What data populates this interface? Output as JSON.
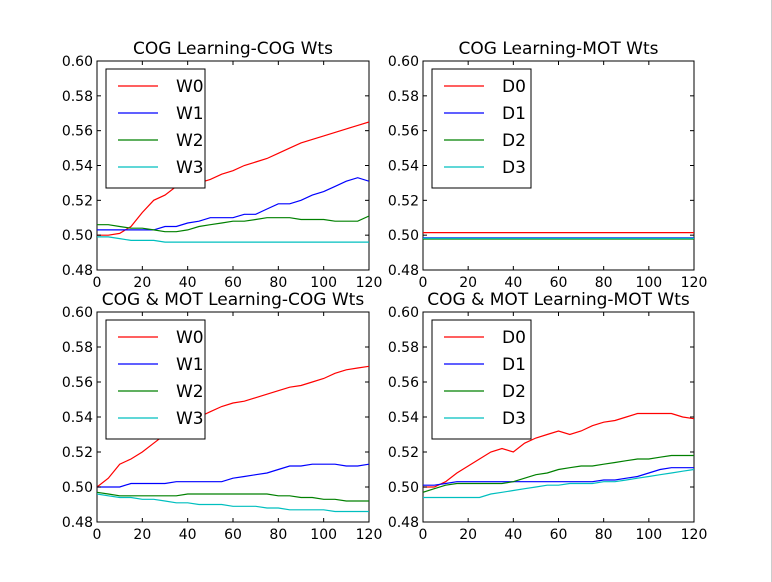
{
  "colors": {
    "red": "#ff0000",
    "blue": "#0000ff",
    "green": "#008000",
    "cyan": "#00bfbf"
  },
  "chart_data": [
    {
      "type": "line",
      "title": "COG Learning-COG Wts",
      "xlabel": "",
      "ylabel": "",
      "xlim": [
        0,
        120
      ],
      "ylim": [
        0.48,
        0.6
      ],
      "xticks": [
        "0",
        "20",
        "40",
        "60",
        "80",
        "100",
        "120"
      ],
      "yticks": [
        "0.48",
        "0.50",
        "0.52",
        "0.54",
        "0.56",
        "0.58",
        "0.60"
      ],
      "legend": "upper-left",
      "series": [
        {
          "name": "W0",
          "color": "#ff0000",
          "x": [
            0,
            5,
            10,
            15,
            20,
            25,
            30,
            35,
            40,
            45,
            50,
            55,
            60,
            65,
            70,
            75,
            80,
            85,
            90,
            95,
            100,
            105,
            110,
            115,
            120
          ],
          "y": [
            0.5,
            0.5,
            0.501,
            0.505,
            0.513,
            0.52,
            0.523,
            0.528,
            0.53,
            0.53,
            0.532,
            0.535,
            0.537,
            0.54,
            0.542,
            0.544,
            0.547,
            0.55,
            0.553,
            0.555,
            0.557,
            0.559,
            0.561,
            0.563,
            0.565
          ]
        },
        {
          "name": "W1",
          "color": "#0000ff",
          "x": [
            0,
            5,
            10,
            15,
            20,
            25,
            30,
            35,
            40,
            45,
            50,
            55,
            60,
            65,
            70,
            75,
            80,
            85,
            90,
            95,
            100,
            105,
            110,
            115,
            120
          ],
          "y": [
            0.503,
            0.503,
            0.503,
            0.503,
            0.503,
            0.503,
            0.505,
            0.505,
            0.507,
            0.508,
            0.51,
            0.51,
            0.51,
            0.512,
            0.512,
            0.515,
            0.518,
            0.518,
            0.52,
            0.523,
            0.525,
            0.528,
            0.531,
            0.533,
            0.531
          ]
        },
        {
          "name": "W2",
          "color": "#008000",
          "x": [
            0,
            5,
            10,
            15,
            20,
            25,
            30,
            35,
            40,
            45,
            50,
            55,
            60,
            65,
            70,
            75,
            80,
            85,
            90,
            95,
            100,
            105,
            110,
            115,
            120
          ],
          "y": [
            0.506,
            0.506,
            0.505,
            0.504,
            0.504,
            0.503,
            0.502,
            0.502,
            0.503,
            0.505,
            0.506,
            0.507,
            0.508,
            0.508,
            0.509,
            0.51,
            0.51,
            0.51,
            0.509,
            0.509,
            0.509,
            0.508,
            0.508,
            0.508,
            0.511
          ]
        },
        {
          "name": "W3",
          "color": "#00bfbf",
          "x": [
            0,
            5,
            10,
            15,
            20,
            25,
            30,
            35,
            40,
            45,
            50,
            55,
            60,
            65,
            70,
            75,
            80,
            85,
            90,
            95,
            100,
            105,
            110,
            115,
            120
          ],
          "y": [
            0.499,
            0.499,
            0.498,
            0.497,
            0.497,
            0.497,
            0.496,
            0.496,
            0.496,
            0.496,
            0.496,
            0.496,
            0.496,
            0.496,
            0.496,
            0.496,
            0.496,
            0.496,
            0.496,
            0.496,
            0.496,
            0.496,
            0.496,
            0.496,
            0.496
          ]
        }
      ]
    },
    {
      "type": "line",
      "title": "COG Learning-MOT Wts",
      "xlabel": "",
      "ylabel": "",
      "xlim": [
        0,
        120
      ],
      "ylim": [
        0.48,
        0.6
      ],
      "xticks": [
        "0",
        "20",
        "40",
        "60",
        "80",
        "100",
        "120"
      ],
      "yticks": [
        "0.48",
        "0.50",
        "0.52",
        "0.54",
        "0.56",
        "0.58",
        "0.60"
      ],
      "legend": "upper-left",
      "series": [
        {
          "name": "D0",
          "color": "#ff0000",
          "x": [
            0,
            120
          ],
          "y": [
            0.5015,
            0.5015
          ]
        },
        {
          "name": "D1",
          "color": "#0000ff",
          "x": [
            0,
            120
          ],
          "y": [
            0.4985,
            0.4985
          ]
        },
        {
          "name": "D2",
          "color": "#008000",
          "x": [
            0,
            120
          ],
          "y": [
            0.4978,
            0.4978
          ]
        },
        {
          "name": "D3",
          "color": "#00bfbf",
          "x": [
            0,
            120
          ],
          "y": [
            0.4982,
            0.4982
          ]
        }
      ]
    },
    {
      "type": "line",
      "title": "COG & MOT Learning-COG Wts",
      "xlabel": "",
      "ylabel": "",
      "xlim": [
        0,
        120
      ],
      "ylim": [
        0.48,
        0.6
      ],
      "xticks": [
        "0",
        "20",
        "40",
        "60",
        "80",
        "100",
        "120"
      ],
      "yticks": [
        "0.48",
        "0.50",
        "0.52",
        "0.54",
        "0.56",
        "0.58",
        "0.60"
      ],
      "legend": "upper-left",
      "series": [
        {
          "name": "W0",
          "color": "#ff0000",
          "x": [
            0,
            5,
            10,
            15,
            20,
            25,
            30,
            35,
            40,
            45,
            50,
            55,
            60,
            65,
            70,
            75,
            80,
            85,
            90,
            95,
            100,
            105,
            110,
            115,
            120
          ],
          "y": [
            0.5,
            0.505,
            0.513,
            0.516,
            0.52,
            0.525,
            0.53,
            0.532,
            0.537,
            0.54,
            0.543,
            0.546,
            0.548,
            0.549,
            0.551,
            0.553,
            0.555,
            0.557,
            0.558,
            0.56,
            0.562,
            0.565,
            0.567,
            0.568,
            0.569
          ]
        },
        {
          "name": "W1",
          "color": "#0000ff",
          "x": [
            0,
            5,
            10,
            15,
            20,
            25,
            30,
            35,
            40,
            45,
            50,
            55,
            60,
            65,
            70,
            75,
            80,
            85,
            90,
            95,
            100,
            105,
            110,
            115,
            120
          ],
          "y": [
            0.5,
            0.5,
            0.5,
            0.502,
            0.502,
            0.502,
            0.502,
            0.503,
            0.503,
            0.503,
            0.503,
            0.503,
            0.505,
            0.506,
            0.507,
            0.508,
            0.51,
            0.512,
            0.512,
            0.513,
            0.513,
            0.513,
            0.512,
            0.512,
            0.513
          ]
        },
        {
          "name": "W2",
          "color": "#008000",
          "x": [
            0,
            5,
            10,
            15,
            20,
            25,
            30,
            35,
            40,
            45,
            50,
            55,
            60,
            65,
            70,
            75,
            80,
            85,
            90,
            95,
            100,
            105,
            110,
            115,
            120
          ],
          "y": [
            0.497,
            0.496,
            0.495,
            0.495,
            0.495,
            0.495,
            0.495,
            0.495,
            0.496,
            0.496,
            0.496,
            0.496,
            0.496,
            0.496,
            0.496,
            0.496,
            0.495,
            0.495,
            0.494,
            0.494,
            0.493,
            0.493,
            0.492,
            0.492,
            0.492
          ]
        },
        {
          "name": "W3",
          "color": "#00bfbf",
          "x": [
            0,
            5,
            10,
            15,
            20,
            25,
            30,
            35,
            40,
            45,
            50,
            55,
            60,
            65,
            70,
            75,
            80,
            85,
            90,
            95,
            100,
            105,
            110,
            115,
            120
          ],
          "y": [
            0.496,
            0.495,
            0.494,
            0.494,
            0.493,
            0.493,
            0.492,
            0.491,
            0.491,
            0.49,
            0.49,
            0.49,
            0.489,
            0.489,
            0.489,
            0.488,
            0.488,
            0.487,
            0.487,
            0.487,
            0.487,
            0.486,
            0.486,
            0.486,
            0.486
          ]
        }
      ]
    },
    {
      "type": "line",
      "title": "COG & MOT Learning-MOT Wts",
      "xlabel": "",
      "ylabel": "",
      "xlim": [
        0,
        120
      ],
      "ylim": [
        0.48,
        0.6
      ],
      "xticks": [
        "0",
        "20",
        "40",
        "60",
        "80",
        "100",
        "120"
      ],
      "yticks": [
        "0.48",
        "0.50",
        "0.52",
        "0.54",
        "0.56",
        "0.58",
        "0.60"
      ],
      "legend": "upper-left",
      "series": [
        {
          "name": "D0",
          "color": "#ff0000",
          "x": [
            0,
            5,
            10,
            15,
            20,
            25,
            30,
            35,
            40,
            45,
            50,
            55,
            60,
            65,
            70,
            75,
            80,
            85,
            90,
            95,
            100,
            105,
            110,
            115,
            120
          ],
          "y": [
            0.5,
            0.5,
            0.503,
            0.508,
            0.512,
            0.516,
            0.52,
            0.522,
            0.52,
            0.525,
            0.528,
            0.53,
            0.532,
            0.53,
            0.532,
            0.535,
            0.537,
            0.538,
            0.54,
            0.542,
            0.542,
            0.542,
            0.542,
            0.54,
            0.539
          ]
        },
        {
          "name": "D1",
          "color": "#0000ff",
          "x": [
            0,
            5,
            10,
            15,
            20,
            25,
            30,
            35,
            40,
            45,
            50,
            55,
            60,
            65,
            70,
            75,
            80,
            85,
            90,
            95,
            100,
            105,
            110,
            115,
            120
          ],
          "y": [
            0.501,
            0.501,
            0.502,
            0.503,
            0.503,
            0.503,
            0.503,
            0.503,
            0.503,
            0.503,
            0.503,
            0.503,
            0.503,
            0.503,
            0.503,
            0.503,
            0.504,
            0.504,
            0.505,
            0.506,
            0.508,
            0.51,
            0.511,
            0.511,
            0.511
          ]
        },
        {
          "name": "D2",
          "color": "#008000",
          "x": [
            0,
            5,
            10,
            15,
            20,
            25,
            30,
            35,
            40,
            45,
            50,
            55,
            60,
            65,
            70,
            75,
            80,
            85,
            90,
            95,
            100,
            105,
            110,
            115,
            120
          ],
          "y": [
            0.497,
            0.499,
            0.501,
            0.502,
            0.502,
            0.502,
            0.502,
            0.502,
            0.503,
            0.505,
            0.507,
            0.508,
            0.51,
            0.511,
            0.512,
            0.512,
            0.513,
            0.514,
            0.515,
            0.516,
            0.516,
            0.517,
            0.518,
            0.518,
            0.518
          ]
        },
        {
          "name": "D3",
          "color": "#00bfbf",
          "x": [
            0,
            5,
            10,
            15,
            20,
            25,
            30,
            35,
            40,
            45,
            50,
            55,
            60,
            65,
            70,
            75,
            80,
            85,
            90,
            95,
            100,
            105,
            110,
            115,
            120
          ],
          "y": [
            0.494,
            0.494,
            0.494,
            0.494,
            0.494,
            0.494,
            0.496,
            0.497,
            0.498,
            0.499,
            0.5,
            0.501,
            0.501,
            0.502,
            0.502,
            0.502,
            0.503,
            0.503,
            0.504,
            0.505,
            0.506,
            0.507,
            0.508,
            0.509,
            0.51
          ]
        }
      ]
    }
  ]
}
